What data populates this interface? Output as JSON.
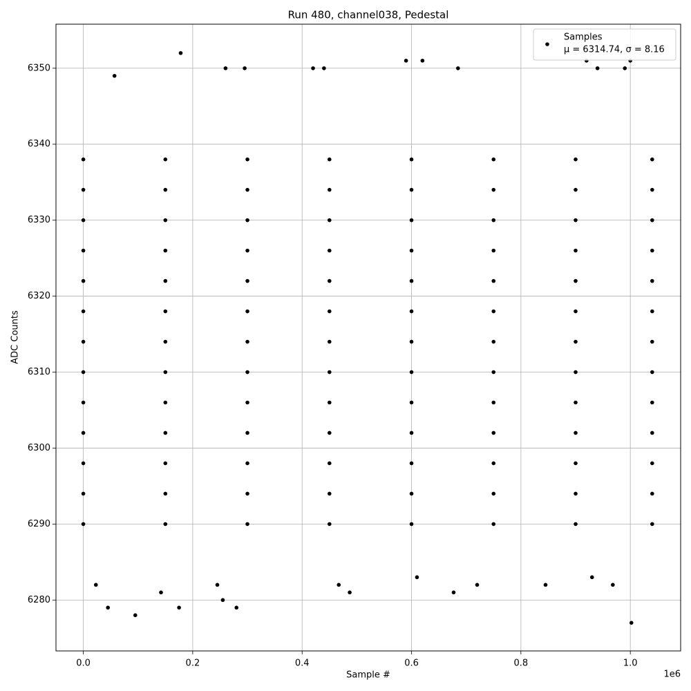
{
  "chart_data": {
    "type": "scatter",
    "title": "Run 480, channel038, Pedestal",
    "x_label": "Sample #",
    "y_label": "ADC Counts",
    "x_offset_label": "1e6",
    "legend_stats": "μ = 6314.74, σ = 8.16",
    "legend": "upper right",
    "grid": true,
    "xlim": [
      -50000,
      1092000
    ],
    "ylim": [
      6273.3,
      6355.8
    ],
    "xticks": [
      {
        "value": 0,
        "label": "0.0"
      },
      {
        "value": 200000,
        "label": "0.2"
      },
      {
        "value": 400000,
        "label": "0.4"
      },
      {
        "value": 600000,
        "label": "0.6"
      },
      {
        "value": 800000,
        "label": "0.8"
      },
      {
        "value": 1000000,
        "label": "1.0"
      }
    ],
    "yticks": [
      6280,
      6290,
      6300,
      6310,
      6320,
      6330,
      6340,
      6350
    ],
    "x": [
      178000,
      57000,
      260000,
      295000,
      420000,
      440000,
      590000,
      620000,
      685000,
      920000,
      1000000,
      990000,
      940000,
      45000,
      95000,
      175000,
      255000,
      280000,
      142000,
      487000,
      677000,
      1002000,
      23000,
      245000,
      467000,
      720000,
      968000,
      845000,
      610000,
      930000,
      0,
      150000,
      300000,
      450000,
      600000,
      750000,
      900000,
      1040000,
      0,
      150000,
      300000,
      450000,
      600000,
      750000,
      900000,
      1040000,
      0,
      150000,
      300000,
      450000,
      600000,
      750000,
      900000,
      1040000,
      0,
      150000,
      300000,
      450000,
      600000,
      750000,
      900000,
      1040000,
      0,
      150000,
      300000,
      450000,
      600000,
      750000,
      900000,
      1040000,
      0,
      150000,
      300000,
      450000,
      600000,
      750000,
      900000,
      1040000,
      0,
      150000,
      300000,
      450000,
      600000,
      750000,
      900000,
      1040000,
      0,
      150000,
      300000,
      450000,
      600000,
      750000,
      900000,
      1040000,
      0,
      150000,
      300000,
      450000,
      600000,
      750000,
      900000,
      1040000,
      0,
      150000,
      300000,
      450000,
      600000,
      750000,
      900000,
      1040000,
      0,
      150000,
      300000,
      450000,
      600000,
      750000,
      900000,
      1040000,
      0,
      150000,
      300000,
      450000,
      600000,
      750000,
      900000,
      1040000,
      0,
      150000,
      300000,
      450000,
      600000,
      750000,
      900000,
      1040000
    ],
    "series": [
      {
        "name": "Samples",
        "color": "#000000",
        "values": [
          6352,
          6349,
          6350,
          6350,
          6350,
          6350,
          6351,
          6351,
          6350,
          6351,
          6351,
          6350,
          6350,
          6279,
          6278,
          6279,
          6280,
          6279,
          6281,
          6281,
          6281,
          6277,
          6282,
          6282,
          6282,
          6282,
          6282,
          6282,
          6283,
          6283,
          6290,
          6290,
          6290,
          6290,
          6290,
          6290,
          6290,
          6290,
          6294,
          6294,
          6294,
          6294,
          6294,
          6294,
          6294,
          6294,
          6298,
          6298,
          6298,
          6298,
          6298,
          6298,
          6298,
          6298,
          6302,
          6302,
          6302,
          6302,
          6302,
          6302,
          6302,
          6302,
          6306,
          6306,
          6306,
          6306,
          6306,
          6306,
          6306,
          6306,
          6310,
          6310,
          6310,
          6310,
          6310,
          6310,
          6310,
          6310,
          6314,
          6314,
          6314,
          6314,
          6314,
          6314,
          6314,
          6314,
          6318,
          6318,
          6318,
          6318,
          6318,
          6318,
          6318,
          6318,
          6322,
          6322,
          6322,
          6322,
          6322,
          6322,
          6322,
          6322,
          6326,
          6326,
          6326,
          6326,
          6326,
          6326,
          6326,
          6326,
          6330,
          6330,
          6330,
          6330,
          6330,
          6330,
          6330,
          6330,
          6334,
          6334,
          6334,
          6334,
          6334,
          6334,
          6334,
          6334,
          6338,
          6338,
          6338,
          6338,
          6338,
          6338,
          6338,
          6338
        ]
      }
    ]
  }
}
